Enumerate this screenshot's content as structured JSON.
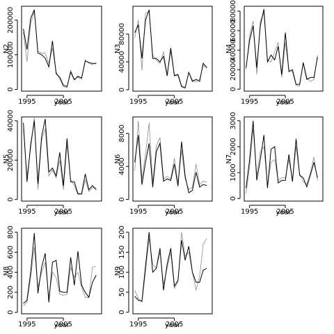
{
  "figure": {
    "background": "#ffffff"
  },
  "colors": {
    "observed": "#000000",
    "fitted": "#8c8c8c"
  },
  "chart_data": [
    {
      "type": "line",
      "xlabel": "year",
      "ylabel": "N2",
      "xlim": [
        1993.5,
        2015.5
      ],
      "ylim": [
        -5000,
        240000
      ],
      "xticks": [
        1995,
        2005
      ],
      "yticks": [
        0,
        100000,
        200000
      ],
      "x": [
        1994,
        1995,
        1996,
        1997,
        1998,
        1999,
        2000,
        2001,
        2002,
        2003,
        2004,
        2005,
        2006,
        2007,
        2008,
        2009,
        2010,
        2011,
        2012,
        2013,
        2014
      ],
      "series": [
        {
          "values": [
            175000,
            115000,
            205000,
            230000,
            105000,
            100000,
            90000,
            65000,
            140000,
            45000,
            35000,
            12000,
            8000,
            50000,
            28000,
            38000,
            33000,
            82000,
            78000,
            75000,
            75000
          ]
        },
        {
          "values": [
            165000,
            80000,
            190000,
            225000,
            110000,
            105000,
            105000,
            75000,
            120000,
            50000,
            30000,
            8000,
            5000,
            55000,
            30000,
            35000,
            30000,
            85000,
            75000,
            72000,
            78000
          ]
        }
      ]
    },
    {
      "type": "line",
      "xlabel": "year",
      "ylabel": "N3",
      "xlim": [
        1993.5,
        2015.5
      ],
      "ylim": [
        -2000,
        120000
      ],
      "xticks": [
        1995,
        2005
      ],
      "yticks": [
        0,
        40000,
        80000
      ],
      "x": [
        1994,
        1995,
        1996,
        1997,
        1998,
        1999,
        2000,
        2001,
        2002,
        2003,
        2004,
        2005,
        2006,
        2007,
        2008,
        2009,
        2010,
        2011,
        2012,
        2013,
        2014
      ],
      "series": [
        {
          "values": [
            82000,
            93000,
            45000,
            100000,
            115000,
            45000,
            45000,
            40000,
            48000,
            20000,
            60000,
            20000,
            22000,
            5000,
            3000,
            25000,
            12000,
            15000,
            12000,
            38000,
            32000
          ]
        },
        {
          "values": [
            75000,
            100000,
            28000,
            110000,
            112000,
            50000,
            42000,
            38000,
            55000,
            22000,
            55000,
            22000,
            20000,
            4000,
            2000,
            25000,
            14000,
            12000,
            15000,
            35000,
            30000
          ]
        }
      ]
    },
    {
      "type": "line",
      "xlabel": "year",
      "ylabel": "N4",
      "xlim": [
        1993.5,
        2015.5
      ],
      "ylim": [
        -2000,
        85000
      ],
      "xticks": [
        1995,
        2005
      ],
      "yticks": [
        0,
        20000,
        40000,
        60000,
        80000
      ],
      "x": [
        1994,
        1995,
        1996,
        1997,
        1998,
        1999,
        2000,
        2001,
        2002,
        2003,
        2004,
        2005,
        2006,
        2007,
        2008,
        2009,
        2010,
        2011,
        2012,
        2013,
        2014
      ],
      "series": [
        {
          "values": [
            22000,
            50000,
            65000,
            22000,
            65000,
            82000,
            28000,
            35000,
            30000,
            44000,
            15000,
            58000,
            18000,
            20000,
            5000,
            5000,
            27000,
            10000,
            12000,
            12000,
            33000
          ]
        },
        {
          "values": [
            20000,
            55000,
            70000,
            15000,
            70000,
            78000,
            30000,
            28000,
            38000,
            48000,
            12000,
            48000,
            20000,
            18000,
            4000,
            3000,
            28000,
            12000,
            8000,
            10000,
            35000
          ]
        }
      ]
    },
    {
      "type": "line",
      "xlabel": "year",
      "ylabel": "N5",
      "xlim": [
        1993.5,
        2015.5
      ],
      "ylim": [
        -800,
        42000
      ],
      "xticks": [
        1995,
        2005
      ],
      "yticks": [
        0,
        20000,
        40000
      ],
      "x": [
        1994,
        1995,
        1996,
        1997,
        1998,
        1999,
        2000,
        2001,
        2002,
        2003,
        2004,
        2005,
        2006,
        2007,
        2008,
        2009,
        2010,
        2011,
        2012,
        2013,
        2014
      ],
      "series": [
        {
          "values": [
            39000,
            9000,
            28000,
            40000,
            8000,
            32000,
            41000,
            14000,
            16000,
            12000,
            24000,
            7000,
            31000,
            9000,
            9000,
            3000,
            3000,
            13000,
            5000,
            7000,
            5000
          ]
        },
        {
          "values": [
            36000,
            12000,
            26000,
            42000,
            5000,
            30000,
            36000,
            12000,
            15000,
            11000,
            20000,
            5000,
            28000,
            10000,
            7000,
            2500,
            2500,
            10000,
            4000,
            6000,
            6000
          ]
        }
      ]
    },
    {
      "type": "line",
      "xlabel": "year",
      "ylabel": "N6",
      "xlim": [
        1993.5,
        2015.5
      ],
      "ylim": [
        -200,
        10000
      ],
      "xticks": [
        1995,
        2005
      ],
      "yticks": [
        0,
        4000,
        8000
      ],
      "x": [
        1994,
        1995,
        1996,
        1997,
        1998,
        1999,
        2000,
        2001,
        2002,
        2003,
        2004,
        2005,
        2006,
        2007,
        2008,
        2009,
        2010,
        2011,
        2012,
        2013,
        2014
      ],
      "series": [
        {
          "values": [
            4500,
            7800,
            1800,
            4500,
            6800,
            1500,
            5800,
            6800,
            2200,
            2500,
            2300,
            4300,
            1600,
            7000,
            2800,
            800,
            1100,
            3300,
            1500,
            1800,
            1700
          ]
        },
        {
          "values": [
            3500,
            9500,
            2500,
            5500,
            9300,
            2000,
            6500,
            7500,
            2500,
            2800,
            2500,
            5000,
            2000,
            6000,
            2500,
            1200,
            1500,
            4300,
            1800,
            2200,
            2100
          ]
        }
      ]
    },
    {
      "type": "line",
      "xlabel": "year",
      "ylabel": "N7",
      "xlim": [
        1993.5,
        2015.5
      ],
      "ylim": [
        -100,
        3150
      ],
      "xticks": [
        1995,
        2005
      ],
      "yticks": [
        0,
        1000,
        2000,
        3000
      ],
      "x": [
        1994,
        1995,
        1996,
        1997,
        1998,
        1999,
        2000,
        2001,
        2002,
        2003,
        2004,
        2005,
        2006,
        2007,
        2008,
        2009,
        2010,
        2011,
        2012,
        2013,
        2014
      ],
      "series": [
        {
          "values": [
            400,
            1500,
            3000,
            700,
            1500,
            2450,
            400,
            1900,
            2000,
            600,
            700,
            700,
            1700,
            650,
            2300,
            900,
            800,
            450,
            900,
            1400,
            800
          ]
        },
        {
          "values": [
            200,
            1200,
            2700,
            900,
            1800,
            2000,
            500,
            1400,
            1500,
            700,
            800,
            800,
            1500,
            700,
            2000,
            950,
            650,
            550,
            1000,
            1600,
            700
          ]
        }
      ]
    },
    {
      "type": "line",
      "xlabel": "year",
      "ylabel": "N8",
      "xlim": [
        1993.5,
        2015.5
      ],
      "ylim": [
        -15,
        840
      ],
      "xticks": [
        1995,
        2005
      ],
      "yticks": [
        0,
        200,
        400,
        600,
        800
      ],
      "x": [
        1994,
        1995,
        1996,
        1997,
        1998,
        1999,
        2000,
        2001,
        2002,
        2003,
        2004,
        2005,
        2006,
        2007,
        2008,
        2009,
        2010,
        2011,
        2012,
        2013,
        2014
      ],
      "series": [
        {
          "values": [
            90,
            120,
            400,
            790,
            190,
            450,
            590,
            100,
            500,
            520,
            210,
            200,
            200,
            550,
            270,
            610,
            270,
            200,
            150,
            300,
            370
          ]
        },
        {
          "values": [
            70,
            100,
            350,
            650,
            250,
            400,
            500,
            150,
            400,
            350,
            180,
            170,
            180,
            450,
            350,
            400,
            250,
            150,
            150,
            450,
            460
          ]
        }
      ]
    },
    {
      "type": "line",
      "xlabel": "year",
      "ylabel": "N9",
      "xlim": [
        1993.5,
        2015.5
      ],
      "ylim": [
        -4,
        210
      ],
      "xticks": [
        1995,
        2005
      ],
      "yticks": [
        0,
        50,
        100,
        150,
        200
      ],
      "x": [
        1994,
        1995,
        1996,
        1997,
        1998,
        1999,
        2000,
        2001,
        2002,
        2003,
        2004,
        2005,
        2006,
        2007,
        2008,
        2009,
        2010,
        2011,
        2012,
        2013,
        2014
      ],
      "series": [
        {
          "values": [
            40,
            30,
            28,
            115,
            200,
            100,
            110,
            160,
            55,
            120,
            160,
            65,
            80,
            180,
            130,
            165,
            100,
            75,
            75,
            105,
            110
          ]
        },
        {
          "values": [
            55,
            35,
            25,
            100,
            185,
            120,
            110,
            150,
            70,
            110,
            150,
            60,
            75,
            200,
            140,
            150,
            100,
            55,
            90,
            170,
            185
          ]
        }
      ]
    }
  ]
}
